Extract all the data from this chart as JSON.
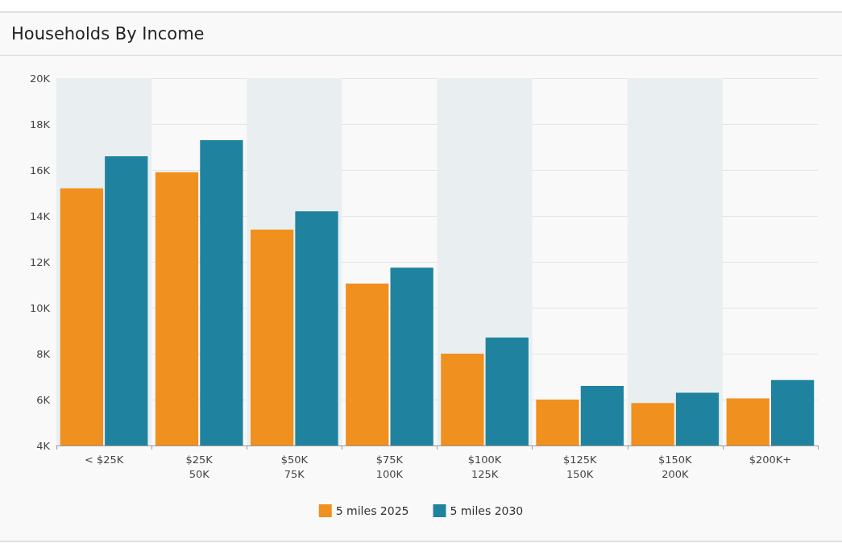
{
  "chart_data": {
    "type": "bar",
    "title": "Households By Income",
    "categories": [
      "< $25K",
      "$25K\n50K",
      "$50K\n75K",
      "$75K\n100K",
      "$100K\n125K",
      "$125K\n150K",
      "$150K\n200K",
      "$200K+"
    ],
    "series": [
      {
        "name": "5 miles 2025",
        "color": "#f0901f",
        "values": [
          15200,
          15900,
          13400,
          11050,
          8000,
          6000,
          5850,
          6050
        ]
      },
      {
        "name": "5 miles 2030",
        "color": "#1f83a0",
        "values": [
          16600,
          17300,
          14200,
          11750,
          8700,
          6600,
          6300,
          6850
        ]
      }
    ],
    "ylim": [
      4000,
      20000
    ],
    "yticks": [
      {
        "value": 4000,
        "label": "4K"
      },
      {
        "value": 6000,
        "label": "6K"
      },
      {
        "value": 8000,
        "label": "8K"
      },
      {
        "value": 10000,
        "label": "10K"
      },
      {
        "value": 12000,
        "label": "12K"
      },
      {
        "value": 14000,
        "label": "14K"
      },
      {
        "value": 16000,
        "label": "16K"
      },
      {
        "value": 18000,
        "label": "18K"
      },
      {
        "value": 20000,
        "label": "20K"
      }
    ],
    "grid": "y",
    "legend": "bottom"
  }
}
